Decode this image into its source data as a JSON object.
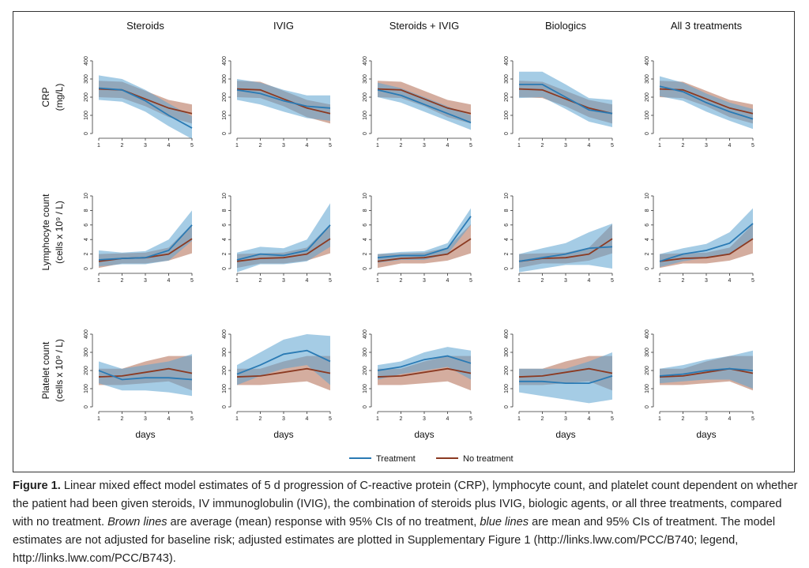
{
  "colors": {
    "treatment_line": "#2a7ab4",
    "treatment_band": "#5ba3d0",
    "none_line": "#8b3a22",
    "none_band": "#b06a50"
  },
  "legend": {
    "treatment": "Treatment",
    "no_treatment": "No treatment"
  },
  "caption": {
    "label": "Figure 1.",
    "part1": " Linear mixed effect model estimates of 5 d progression of C-reactive protein (CRP), lymphocyte count, and platelet count dependent on whether the patient had been given steroids, IV immunoglobulin (IVIG), the combination of steroids plus IVIG, biologic agents, or all three treatments, compared with no treatment. ",
    "em1": "Brown lines",
    "part2": " are average (mean) response with 95% CIs of no treatment, ",
    "em2": "blue lines",
    "part3": " are mean and 95% CIs of treatment. The model estimates are not adjusted for baseline risk; adjusted estimates are plotted in Supplementary Figure 1 (http://links.lww.com/PCC/B740; legend, http://links.lww.com/PCC/B743)."
  },
  "chart_data": {
    "type": "line",
    "columns": [
      "Steroids",
      "IVIG",
      "Steroids + IVIG",
      "Biologics",
      "All 3 treatments"
    ],
    "xlabel": "days",
    "x": [
      1,
      2,
      3,
      4,
      5
    ],
    "rows": [
      {
        "label_line1": "CRP",
        "label_line2": "(mg/L)",
        "ylim": [
          0,
          400
        ],
        "yticks": [
          "0",
          "100",
          "200",
          "300",
          "400"
        ],
        "no_treatment": {
          "mean": [
            245,
            240,
            190,
            140,
            110
          ],
          "lower": [
            200,
            195,
            150,
            90,
            55
          ],
          "upper": [
            290,
            285,
            235,
            185,
            160
          ]
        },
        "treatment": [
          {
            "mean": [
              250,
              240,
              180,
              100,
              30
            ],
            "lower": [
              185,
              175,
              120,
              40,
              -30
            ],
            "upper": [
              320,
              300,
              240,
              165,
              95
            ]
          },
          {
            "mean": [
              240,
              220,
              180,
              150,
              140
            ],
            "lower": [
              185,
              160,
              120,
              85,
              70
            ],
            "upper": [
              300,
              280,
              240,
              210,
              210
            ]
          },
          {
            "mean": [
              240,
              210,
              160,
              110,
              60
            ],
            "lower": [
              200,
              170,
              120,
              70,
              20
            ],
            "upper": [
              280,
              250,
              200,
              150,
              100
            ]
          },
          {
            "mean": [
              270,
              270,
              200,
              130,
              110
            ],
            "lower": [
              195,
              200,
              135,
              65,
              35
            ],
            "upper": [
              340,
              340,
              270,
              195,
              185
            ]
          },
          {
            "mean": [
              260,
              230,
              170,
              120,
              80
            ],
            "lower": [
              205,
              180,
              120,
              70,
              25
            ],
            "upper": [
              315,
              280,
              220,
              170,
              135
            ]
          }
        ]
      },
      {
        "label_line1": "Lymphocyte count",
        "label_line2": "(cells x 10⁹ / L)",
        "ylim": [
          0,
          10
        ],
        "yticks": [
          "0",
          "2",
          "4",
          "6",
          "8",
          "10"
        ],
        "no_treatment": {
          "mean": [
            1.0,
            1.4,
            1.5,
            2.0,
            4.1
          ],
          "lower": [
            0.1,
            0.7,
            0.7,
            1.1,
            2.1
          ],
          "upper": [
            2.0,
            2.1,
            2.2,
            2.9,
            6.1
          ]
        },
        "treatment": [
          {
            "mean": [
              1.2,
              1.4,
              1.5,
              2.5,
              6.0
            ],
            "lower": [
              0.3,
              0.6,
              0.6,
              1.1,
              3.8
            ],
            "upper": [
              2.5,
              2.2,
              2.4,
              4.0,
              8.0
            ]
          },
          {
            "mean": [
              1.2,
              2.0,
              1.8,
              2.5,
              6.0
            ],
            "lower": [
              -0.5,
              0.6,
              0.6,
              1.0,
              3.0
            ],
            "upper": [
              2.2,
              3.0,
              2.8,
              4.0,
              9.0
            ]
          },
          {
            "mean": [
              1.5,
              1.8,
              1.8,
              2.8,
              7.2
            ],
            "lower": [
              0.8,
              1.2,
              1.2,
              2.0,
              6.0
            ],
            "upper": [
              2.0,
              2.3,
              2.4,
              3.5,
              8.3
            ]
          },
          {
            "mean": [
              1.0,
              1.5,
              2.0,
              2.8,
              3.0
            ],
            "lower": [
              -0.5,
              0.0,
              0.5,
              0.5,
              0.0
            ],
            "upper": [
              2.0,
              2.8,
              3.5,
              5.0,
              6.2
            ]
          },
          {
            "mean": [
              1.0,
              2.0,
              2.5,
              3.5,
              6.2
            ],
            "lower": [
              0.2,
              1.0,
              1.5,
              2.0,
              4.0
            ],
            "upper": [
              2.0,
              2.8,
              3.4,
              5.0,
              8.3
            ]
          }
        ]
      },
      {
        "label_line1": "Platelet count",
        "label_line2": "(cells x 10⁹ / L)",
        "ylim": [
          0,
          400
        ],
        "yticks": [
          "0",
          "100",
          "200",
          "300",
          "400"
        ],
        "no_treatment": {
          "mean": [
            165,
            170,
            190,
            210,
            185
          ],
          "lower": [
            120,
            120,
            130,
            140,
            90
          ],
          "upper": [
            210,
            210,
            250,
            280,
            280
          ]
        },
        "treatment": [
          {
            "mean": [
              200,
              150,
              160,
              160,
              150
            ],
            "lower": [
              130,
              90,
              90,
              80,
              60
            ],
            "upper": [
              250,
              210,
              230,
              250,
              290
            ]
          },
          {
            "mean": [
              180,
              230,
              290,
              310,
              250
            ],
            "lower": [
              120,
              170,
              210,
              230,
              120
            ],
            "upper": [
              230,
              300,
              370,
              400,
              390
            ]
          },
          {
            "mean": [
              200,
              220,
              260,
              280,
              240
            ],
            "lower": [
              150,
              180,
              200,
              220,
              150
            ],
            "upper": [
              230,
              250,
              300,
              330,
              310
            ]
          },
          {
            "mean": [
              140,
              140,
              130,
              130,
              170
            ],
            "lower": [
              80,
              60,
              40,
              20,
              40
            ],
            "upper": [
              210,
              210,
              210,
              250,
              300
            ]
          },
          {
            "mean": [
              170,
              180,
              200,
              210,
              200
            ],
            "lower": [
              130,
              140,
              150,
              150,
              100
            ],
            "upper": [
              210,
              230,
              260,
              280,
              310
            ]
          }
        ]
      }
    ]
  }
}
